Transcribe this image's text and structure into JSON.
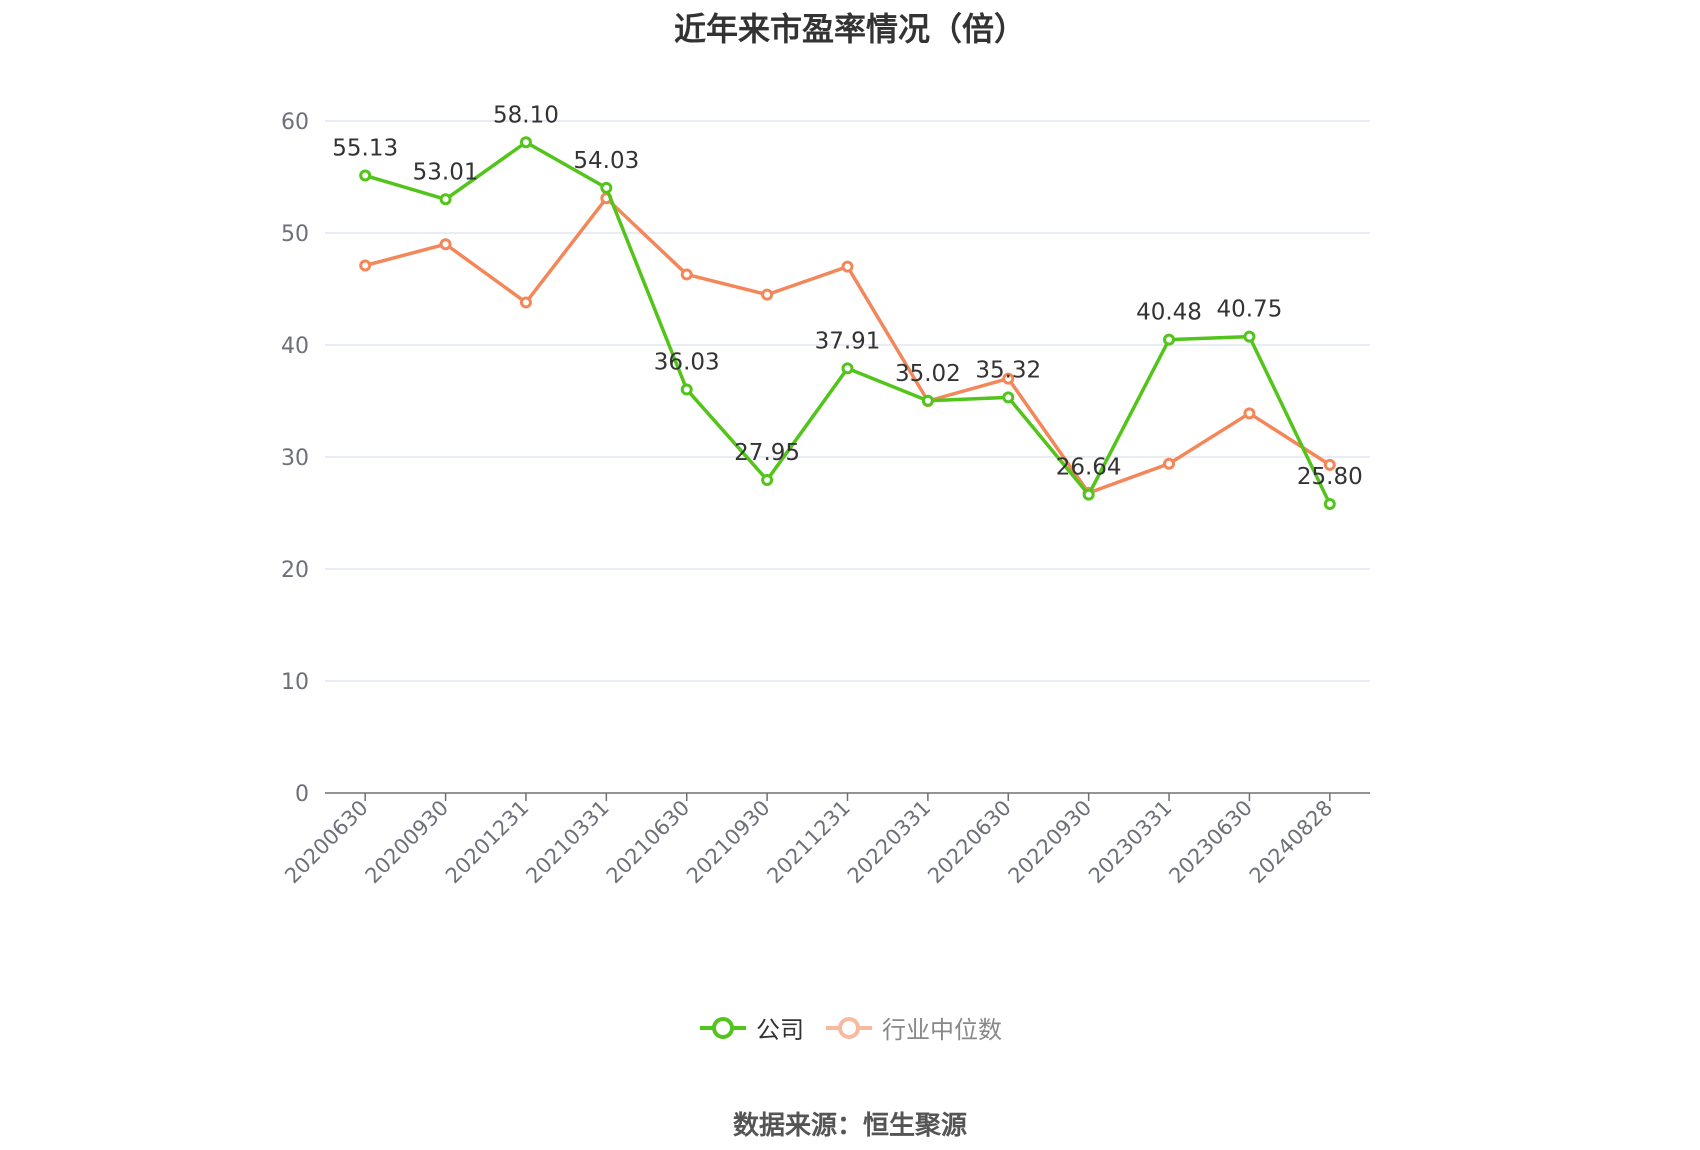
{
  "title": "近年来市盈率情况（倍）",
  "source": "数据来源：恒生聚源",
  "chart_data": {
    "type": "line",
    "title": "近年来市盈率情况（倍）",
    "xlabel": "",
    "ylabel": "",
    "ylim": [
      0,
      60
    ],
    "yticks": [
      0,
      10,
      20,
      30,
      40,
      50,
      60
    ],
    "grid": true,
    "legend_position": "bottom",
    "categories": [
      "20200630",
      "20200930",
      "20201231",
      "20210331",
      "20210630",
      "20210930",
      "20211231",
      "20220331",
      "20220630",
      "20220930",
      "20230331",
      "20230630",
      "20240828"
    ],
    "series": [
      {
        "name": "公司",
        "color": "#52c41a",
        "values": [
          55.13,
          53.01,
          58.1,
          54.03,
          36.03,
          27.95,
          37.91,
          35.02,
          35.32,
          26.64,
          40.48,
          40.75,
          25.8
        ],
        "labels": [
          "55.13",
          "53.01",
          "58.10",
          "54.03",
          "36.03",
          "27.95",
          "37.91",
          "35.02",
          "35.32",
          "26.64",
          "40.48",
          "40.75",
          "25.80"
        ]
      },
      {
        "name": "行业中位数",
        "color": "#f4875a",
        "values": [
          47.1,
          49.0,
          43.8,
          53.1,
          46.3,
          44.5,
          47.0,
          35.0,
          37.0,
          26.8,
          29.4,
          33.9,
          29.3
        ]
      }
    ]
  }
}
